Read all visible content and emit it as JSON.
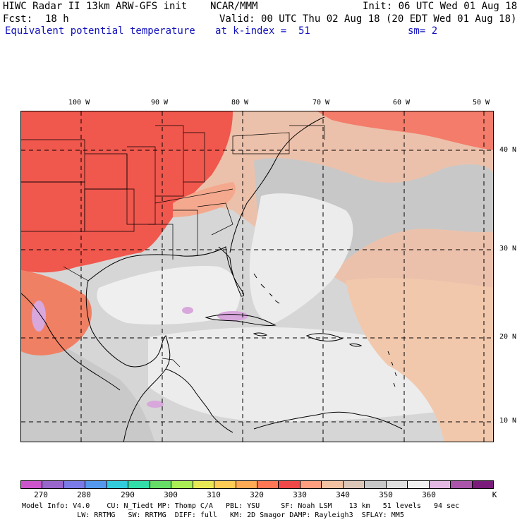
{
  "header": {
    "title": "HIWC Radar II 13km ARW-GFS init",
    "source": "NCAR/MMM",
    "init": "Init: 06 UTC Wed 01 Aug 18",
    "fcst_label": "Fcst:",
    "fcst_value": "18 h",
    "valid": "Valid: 00 UTC Thu 02 Aug 18 (20 EDT Wed 01 Aug 18)",
    "field": "Equivalent potential temperature",
    "level": "at k-index =  51",
    "smoothing": "sm= 2"
  },
  "map": {
    "longitude_labels": [
      "100 W",
      "90 W",
      "80 W",
      "70 W",
      "60 W",
      "50 W"
    ],
    "latitude_labels": [
      "40 N",
      "30 N",
      "20 N",
      "10 N"
    ]
  },
  "colorbar": {
    "labels": [
      "270",
      "280",
      "290",
      "300",
      "310",
      "320",
      "330",
      "340",
      "350",
      "360",
      "K"
    ],
    "colors": [
      "#cc55cc",
      "#9966cc",
      "#7b7be8",
      "#5599ee",
      "#33ccdd",
      "#33ddaa",
      "#66dd66",
      "#aaee55",
      "#e8e855",
      "#ffcc55",
      "#ffaa55",
      "#ff7755",
      "#f04848",
      "#ff9f80",
      "#f2c2a2",
      "#dcc6b8",
      "#c8c8c8",
      "#e0e0e0",
      "#f0f0f0",
      "#e3b8e3",
      "#aa55aa",
      "#7a1a7a"
    ]
  },
  "footer": {
    "line1": "Model Info: V4.0    CU: N_Tiedt MP: Thomp C/A   PBL: YSU     SF: Noah LSM    13 km   51 levels   94 sec",
    "line2": "             LW: RRTMG   SW: RRTMG  DIFF: full   KM: 2D Smagor DAMP: Rayleigh3  SFLAY: MM5"
  }
}
